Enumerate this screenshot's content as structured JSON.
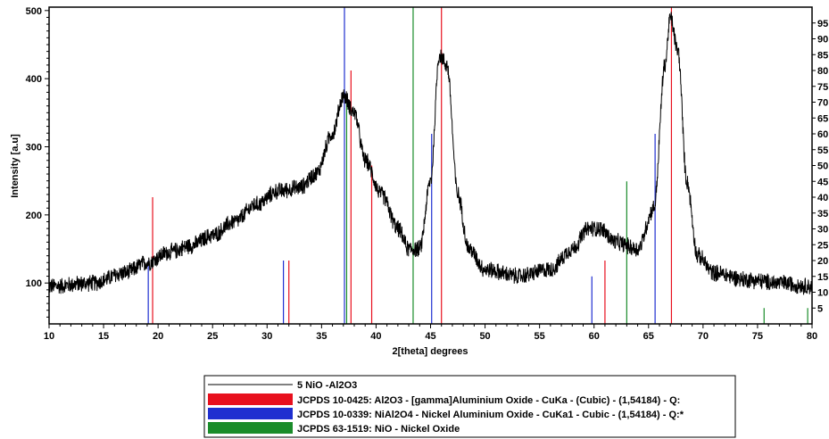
{
  "chart_data": {
    "type": "line",
    "title": "",
    "xlabel": "2[theta] degrees",
    "ylabel": "Intensity [a.u]",
    "xlim": [
      10,
      80
    ],
    "ylim": [
      40,
      505
    ],
    "x_ticks": [
      "10",
      "15",
      "20",
      "25",
      "30",
      "35",
      "40",
      "45",
      "50",
      "55",
      "60",
      "65",
      "70",
      "75",
      "80"
    ],
    "y_ticks": [
      "100",
      "200",
      "300",
      "400",
      "500"
    ],
    "y2_ticks": [
      "5",
      "10",
      "15",
      "20",
      "25",
      "30",
      "35",
      "40",
      "45",
      "50",
      "55",
      "60",
      "65",
      "70",
      "75",
      "80",
      "85",
      "90",
      "95"
    ],
    "y2lim": [
      0,
      100
    ],
    "grid": false,
    "legend_position": "bottom",
    "pattern": {
      "name": "5 NiO -Al2O3",
      "color": "#000000",
      "noise_amplitude": 14,
      "profile": [
        [
          10,
          95
        ],
        [
          14,
          100
        ],
        [
          17,
          115
        ],
        [
          19,
          130
        ],
        [
          21,
          145
        ],
        [
          23,
          155
        ],
        [
          25,
          170
        ],
        [
          27,
          190
        ],
        [
          29,
          215
        ],
        [
          31,
          235
        ],
        [
          33,
          240
        ],
        [
          34.5,
          260
        ],
        [
          36,
          320
        ],
        [
          37,
          375
        ],
        [
          38,
          350
        ],
        [
          39,
          280
        ],
        [
          40.5,
          230
        ],
        [
          42,
          180
        ],
        [
          43,
          150
        ],
        [
          44,
          150
        ],
        [
          45,
          250
        ],
        [
          45.8,
          435
        ],
        [
          46.5,
          420
        ],
        [
          47.5,
          230
        ],
        [
          48.5,
          150
        ],
        [
          50,
          120
        ],
        [
          53,
          110
        ],
        [
          56,
          120
        ],
        [
          58,
          150
        ],
        [
          59.5,
          180
        ],
        [
          60.5,
          180
        ],
        [
          62,
          160
        ],
        [
          64,
          150
        ],
        [
          65.5,
          210
        ],
        [
          66.5,
          420
        ],
        [
          67,
          490
        ],
        [
          67.7,
          440
        ],
        [
          68.5,
          250
        ],
        [
          69.5,
          140
        ],
        [
          71,
          115
        ],
        [
          74,
          105
        ],
        [
          77,
          100
        ],
        [
          80,
          95
        ]
      ]
    },
    "series": [
      {
        "name": "JCPDS 10-0425: Al2O3 - [gamma]Aluminium Oxide - CuKa - (Cubic) - (1,54184) - Q:",
        "color": "#e8101e",
        "x": [
          19.5,
          32.0,
          37.7,
          39.6,
          46.0,
          61.0,
          67.1
        ],
        "y": [
          40,
          20,
          80,
          50,
          100,
          20,
          100
        ]
      },
      {
        "name": "JCPDS 10-0339: NiAl2O4 - Nickel Aluminium Oxide - CuKa1 - Cubic - (1,54184) - Q:*",
        "color": "#1f2fd0",
        "x": [
          19.1,
          31.5,
          37.1,
          45.1,
          59.8,
          65.6
        ],
        "y": [
          20,
          20,
          100,
          60,
          15,
          60
        ]
      },
      {
        "name": "JCPDS 63-1519: NiO - Nickel Oxide",
        "color": "#1a8c2a",
        "x": [
          37.3,
          43.4,
          63.0,
          75.6,
          79.6
        ],
        "y": [
          70,
          100,
          45,
          5,
          5
        ]
      }
    ]
  }
}
